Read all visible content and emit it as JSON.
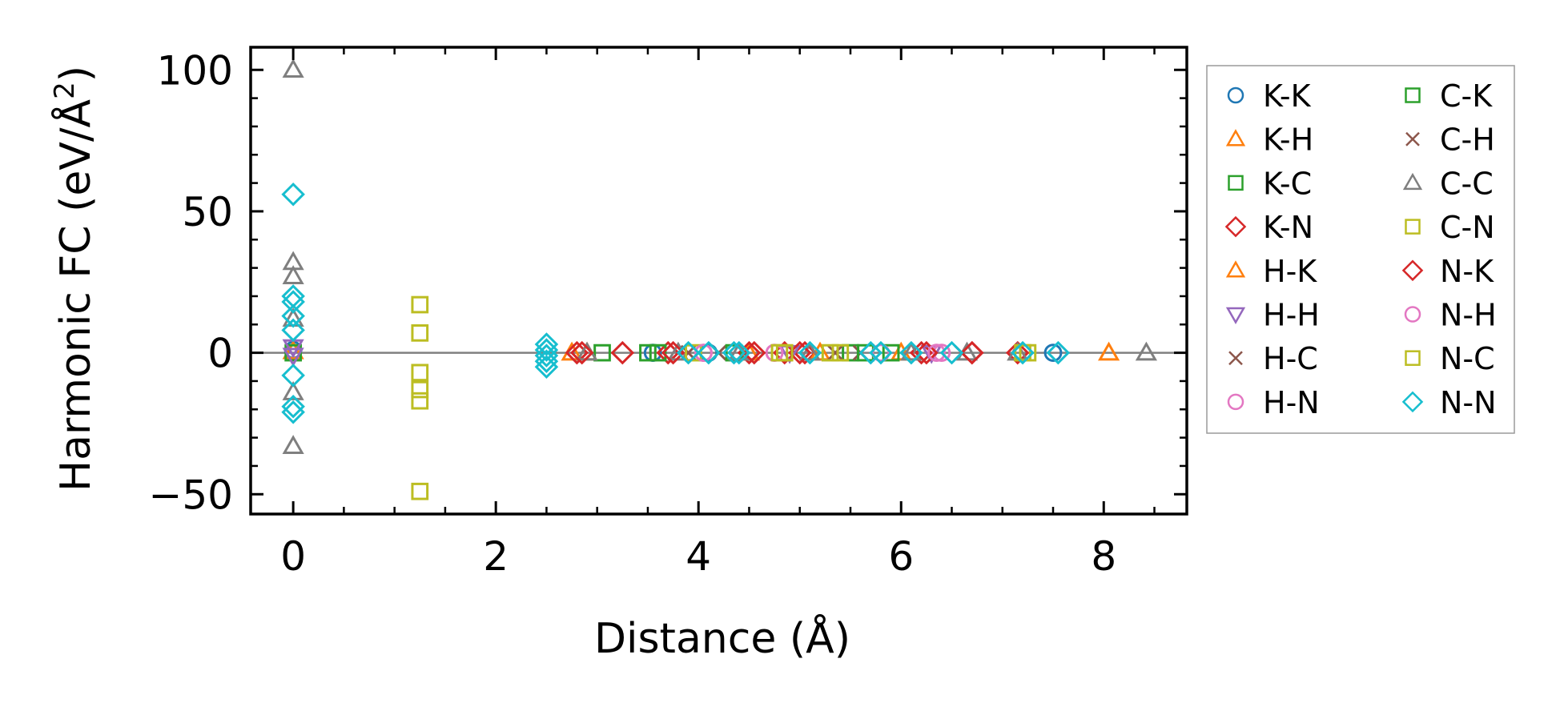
{
  "chart_data": {
    "type": "scatter",
    "title": "",
    "xlabel": "Distance (Å)",
    "ylabel_main": "Harmonic FC (eV/Å",
    "ylabel_sup": "2",
    "ylabel_close": ")",
    "xlim": [
      -0.42,
      8.82
    ],
    "ylim": [
      -57,
      108
    ],
    "x_ticks": [
      0,
      2,
      4,
      6,
      8
    ],
    "x_tick_labels": [
      "0",
      "2",
      "4",
      "6",
      "8"
    ],
    "y_ticks": [
      100,
      50,
      0,
      -50
    ],
    "y_tick_labels": [
      "100",
      "50",
      "0",
      "−50"
    ],
    "zero_line": 0,
    "legend_position": "outside-right",
    "series": [
      {
        "name": "K-K",
        "color": "#1f77b4",
        "marker": "circle",
        "points": [
          [
            3.55,
            0
          ],
          [
            4.1,
            0
          ],
          [
            7.5,
            0
          ],
          [
            0,
            1
          ]
        ]
      },
      {
        "name": "K-H",
        "color": "#ff7f0e",
        "marker": "triangle-up",
        "points": [
          [
            2.75,
            0
          ],
          [
            4.5,
            0
          ],
          [
            8.05,
            0
          ],
          [
            0,
            0.5
          ]
        ]
      },
      {
        "name": "K-C",
        "color": "#2ca02c",
        "marker": "square",
        "points": [
          [
            3.5,
            0
          ],
          [
            5.5,
            0
          ],
          [
            0,
            0
          ]
        ]
      },
      {
        "name": "K-N",
        "color": "#d62728",
        "marker": "diamond",
        "points": [
          [
            2.8,
            0
          ],
          [
            3.25,
            0
          ],
          [
            3.7,
            0
          ],
          [
            4.5,
            0
          ],
          [
            4.85,
            0
          ],
          [
            5.05,
            0
          ],
          [
            6.2,
            0
          ],
          [
            6.7,
            0
          ],
          [
            7.15,
            0
          ]
        ]
      },
      {
        "name": "H-K",
        "color": "#ff7f0e",
        "marker": "triangle-up",
        "points": [
          [
            2.9,
            0
          ],
          [
            5.2,
            0
          ],
          [
            6.0,
            0
          ]
        ]
      },
      {
        "name": "H-H",
        "color": "#9467bd",
        "marker": "triangle-down",
        "points": [
          [
            0,
            2
          ],
          [
            0,
            -1
          ],
          [
            4.9,
            0
          ],
          [
            6.3,
            0
          ]
        ]
      },
      {
        "name": "H-C",
        "color": "#8c564b",
        "marker": "x",
        "points": [
          [
            4.2,
            0
          ],
          [
            5.6,
            0
          ],
          [
            6.6,
            0
          ]
        ]
      },
      {
        "name": "H-N",
        "color": "#e377c2",
        "marker": "circle",
        "points": [
          [
            4.05,
            0
          ],
          [
            4.75,
            0
          ],
          [
            6.4,
            0
          ]
        ]
      },
      {
        "name": "C-K",
        "color": "#2ca02c",
        "marker": "square",
        "points": [
          [
            3.05,
            0
          ],
          [
            3.6,
            0
          ],
          [
            4.35,
            0
          ],
          [
            5.65,
            0
          ],
          [
            5.9,
            0
          ]
        ]
      },
      {
        "name": "C-H",
        "color": "#8c564b",
        "marker": "x",
        "points": [
          [
            3.9,
            0
          ],
          [
            5.35,
            0
          ]
        ]
      },
      {
        "name": "C-C",
        "color": "#7f7f7f",
        "marker": "triangle-up",
        "points": [
          [
            0,
            100
          ],
          [
            0,
            32
          ],
          [
            0,
            27
          ],
          [
            0,
            12
          ],
          [
            0,
            -14
          ],
          [
            0,
            -33
          ],
          [
            2.9,
            0
          ],
          [
            3.8,
            0
          ],
          [
            4.4,
            0
          ],
          [
            5.1,
            0
          ],
          [
            6.1,
            0
          ],
          [
            6.65,
            0
          ],
          [
            7.15,
            0
          ],
          [
            8.42,
            0
          ]
        ]
      },
      {
        "name": "C-N",
        "color": "#bcbd22",
        "marker": "square",
        "points": [
          [
            1.25,
            17
          ],
          [
            1.25,
            7
          ],
          [
            1.25,
            -7
          ],
          [
            1.25,
            -13
          ],
          [
            1.25,
            -17
          ],
          [
            1.25,
            -49
          ],
          [
            3.95,
            0
          ],
          [
            4.8,
            0
          ],
          [
            5.4,
            0
          ],
          [
            7.25,
            0
          ]
        ]
      },
      {
        "name": "N-K",
        "color": "#d62728",
        "marker": "diamond",
        "points": [
          [
            2.85,
            0
          ],
          [
            3.75,
            0
          ],
          [
            4.55,
            0
          ],
          [
            5.0,
            0
          ],
          [
            6.25,
            0
          ],
          [
            6.7,
            0
          ]
        ]
      },
      {
        "name": "N-H",
        "color": "#e377c2",
        "marker": "circle",
        "points": [
          [
            4.05,
            0
          ],
          [
            5.8,
            0
          ],
          [
            6.35,
            0
          ]
        ]
      },
      {
        "name": "N-C",
        "color": "#bcbd22",
        "marker": "square",
        "points": [
          [
            4.85,
            0
          ],
          [
            5.3,
            0
          ],
          [
            7.2,
            0
          ]
        ]
      },
      {
        "name": "N-N",
        "color": "#17becf",
        "marker": "diamond",
        "points": [
          [
            0,
            56
          ],
          [
            0,
            20
          ],
          [
            0,
            18
          ],
          [
            0,
            13
          ],
          [
            0,
            8
          ],
          [
            0,
            -8
          ],
          [
            0,
            -19
          ],
          [
            0,
            -21
          ],
          [
            2.5,
            3
          ],
          [
            2.5,
            1
          ],
          [
            2.5,
            -1
          ],
          [
            2.5,
            -3
          ],
          [
            2.5,
            -5
          ],
          [
            3.9,
            0
          ],
          [
            4.1,
            0
          ],
          [
            4.35,
            0
          ],
          [
            4.4,
            0
          ],
          [
            5.1,
            0
          ],
          [
            5.7,
            0
          ],
          [
            5.8,
            0
          ],
          [
            6.1,
            0
          ],
          [
            6.5,
            0
          ],
          [
            7.2,
            0
          ],
          [
            7.55,
            0
          ]
        ]
      }
    ]
  }
}
